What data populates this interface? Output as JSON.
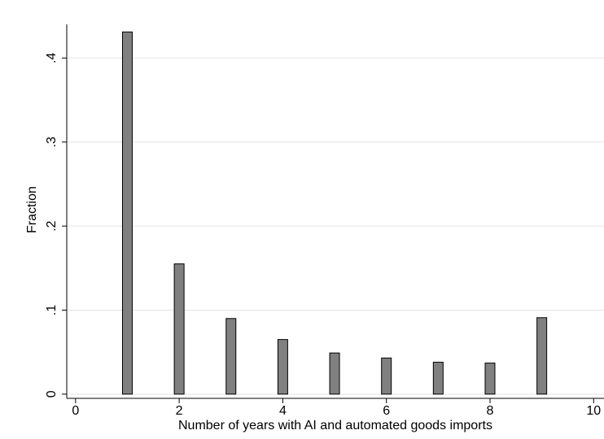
{
  "chart_data": {
    "type": "bar",
    "x_label": "Number of years with AI and automated goods imports",
    "y_label": "Fraction",
    "x": [
      1,
      2,
      3,
      4,
      5,
      6,
      7,
      8,
      9
    ],
    "values": [
      0.431,
      0.155,
      0.09,
      0.065,
      0.049,
      0.043,
      0.038,
      0.037,
      0.091
    ],
    "color": "#808080",
    "xlim": [
      -0.17,
      10.2
    ],
    "xticks": [
      0,
      2,
      4,
      6,
      8,
      10
    ],
    "ylim": [
      -0.005,
      0.44
    ],
    "yticks": [
      0,
      {
        "value": 0.1,
        "label": ".1"
      },
      {
        "value": 0.2,
        "label": ".2"
      },
      {
        "value": 0.3,
        "label": ".3"
      },
      {
        "value": 0.4,
        "label": ".4"
      }
    ],
    "grid": true
  }
}
